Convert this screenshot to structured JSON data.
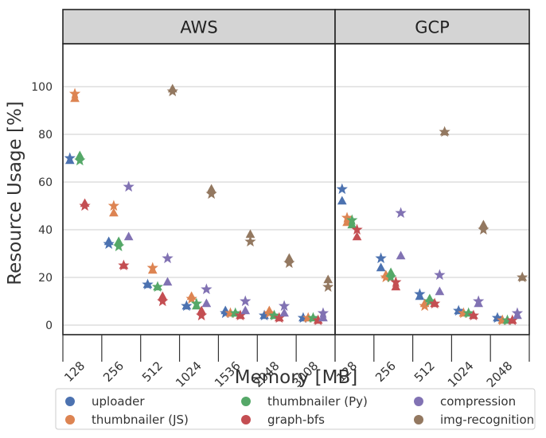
{
  "chart_data": {
    "type": "scatter",
    "ylabel": "Resource Usage [%]",
    "xlabel": "Memory [MB]",
    "ylim": [
      -4,
      118
    ],
    "yticks": [
      0,
      20,
      40,
      60,
      80,
      100
    ],
    "grid": true,
    "legend_position": "bottom",
    "marker_legend": {
      "triangle": "",
      "star": ""
    },
    "series": [
      {
        "name": "uploader",
        "color": "#4c72b0"
      },
      {
        "name": "thumbnailer (JS)",
        "color": "#dd8452"
      },
      {
        "name": "thumbnailer (Py)",
        "color": "#55a868"
      },
      {
        "name": "graph-bfs",
        "color": "#c44e52"
      },
      {
        "name": "compression",
        "color": "#8172b3"
      },
      {
        "name": "img-recognition",
        "color": "#937860"
      }
    ],
    "panels": [
      {
        "title": "AWS",
        "categories": [
          "128",
          "256",
          "512",
          "1024",
          "1536",
          "2048",
          "3008"
        ],
        "points": [
          {
            "series": "uploader",
            "x": "128",
            "tri": 69,
            "star": 70
          },
          {
            "series": "thumbnailer (JS)",
            "x": "128",
            "tri": 95,
            "star": 97
          },
          {
            "series": "thumbnailer (Py)",
            "x": "128",
            "tri": 71,
            "star": 69
          },
          {
            "series": "graph-bfs",
            "x": "128",
            "tri": 51,
            "star": 50
          },
          {
            "series": "uploader",
            "x": "256",
            "tri": 35,
            "star": 34
          },
          {
            "series": "thumbnailer (JS)",
            "x": "256",
            "tri": 47,
            "star": 50
          },
          {
            "series": "thumbnailer (Py)",
            "x": "256",
            "tri": 35,
            "star": 33
          },
          {
            "series": "graph-bfs",
            "x": "256",
            "tri": 25,
            "star": 25
          },
          {
            "series": "compression",
            "x": "256",
            "tri": 37,
            "star": 58
          },
          {
            "series": "uploader",
            "x": "512",
            "tri": 17,
            "star": 17
          },
          {
            "series": "thumbnailer (JS)",
            "x": "512",
            "tri": 23,
            "star": 24
          },
          {
            "series": "thumbnailer (Py)",
            "x": "512",
            "tri": 16,
            "star": 16
          },
          {
            "series": "graph-bfs",
            "x": "512",
            "tri": 12,
            "star": 10
          },
          {
            "series": "compression",
            "x": "512",
            "tri": 18,
            "star": 28
          },
          {
            "series": "img-recognition",
            "x": "512",
            "tri": 99,
            "star": 98
          },
          {
            "series": "uploader",
            "x": "1024",
            "tri": 8,
            "star": 8
          },
          {
            "series": "thumbnailer (JS)",
            "x": "1024",
            "tri": 12,
            "star": 11
          },
          {
            "series": "thumbnailer (Py)",
            "x": "1024",
            "tri": 8,
            "star": 9
          },
          {
            "series": "graph-bfs",
            "x": "1024",
            "tri": 6,
            "star": 4
          },
          {
            "series": "compression",
            "x": "1024",
            "tri": 9,
            "star": 15
          },
          {
            "series": "img-recognition",
            "x": "1024",
            "tri": 57,
            "star": 55
          },
          {
            "series": "uploader",
            "x": "1536",
            "tri": 6,
            "star": 5
          },
          {
            "series": "thumbnailer (JS)",
            "x": "1536",
            "tri": 5,
            "star": 5
          },
          {
            "series": "thumbnailer (Py)",
            "x": "1536",
            "tri": 5,
            "star": 5
          },
          {
            "series": "graph-bfs",
            "x": "1536",
            "tri": 4,
            "star": 4
          },
          {
            "series": "compression",
            "x": "1536",
            "tri": 6,
            "star": 10
          },
          {
            "series": "img-recognition",
            "x": "1536",
            "tri": 38,
            "star": 35
          },
          {
            "series": "uploader",
            "x": "2048",
            "tri": 4,
            "star": 4
          },
          {
            "series": "thumbnailer (JS)",
            "x": "2048",
            "tri": 6,
            "star": 5
          },
          {
            "series": "thumbnailer (Py)",
            "x": "2048",
            "tri": 4,
            "star": 4
          },
          {
            "series": "graph-bfs",
            "x": "2048",
            "tri": 3,
            "star": 3
          },
          {
            "series": "compression",
            "x": "2048",
            "tri": 5,
            "star": 8
          },
          {
            "series": "img-recognition",
            "x": "2048",
            "tri": 28,
            "star": 26
          },
          {
            "series": "uploader",
            "x": "3008",
            "tri": 3,
            "star": 3
          },
          {
            "series": "thumbnailer (JS)",
            "x": "3008",
            "tri": 3,
            "star": 3
          },
          {
            "series": "thumbnailer (Py)",
            "x": "3008",
            "tri": 3,
            "star": 3
          },
          {
            "series": "graph-bfs",
            "x": "3008",
            "tri": 2,
            "star": 2
          },
          {
            "series": "compression",
            "x": "3008",
            "tri": 3,
            "star": 5
          },
          {
            "series": "img-recognition",
            "x": "3008",
            "tri": 19,
            "star": 16
          }
        ]
      },
      {
        "title": "GCP",
        "categories": [
          "128",
          "256",
          "512",
          "1024",
          "2048"
        ],
        "points": [
          {
            "series": "uploader",
            "x": "128",
            "tri": 52,
            "star": 57
          },
          {
            "series": "thumbnailer (JS)",
            "x": "128",
            "tri": 43,
            "star": 45
          },
          {
            "series": "thumbnailer (Py)",
            "x": "128",
            "tri": 42,
            "star": 44
          },
          {
            "series": "graph-bfs",
            "x": "128",
            "tri": 37,
            "star": 40
          },
          {
            "series": "uploader",
            "x": "256",
            "tri": 24,
            "star": 28
          },
          {
            "series": "thumbnailer (JS)",
            "x": "256",
            "tri": 21,
            "star": 20
          },
          {
            "series": "thumbnailer (Py)",
            "x": "256",
            "tri": 22,
            "star": 20
          },
          {
            "series": "graph-bfs",
            "x": "256",
            "tri": 16,
            "star": 18
          },
          {
            "series": "compression",
            "x": "256",
            "tri": 29,
            "star": 47
          },
          {
            "series": "uploader",
            "x": "512",
            "tri": 12,
            "star": 13
          },
          {
            "series": "thumbnailer (JS)",
            "x": "512",
            "tri": 9,
            "star": 8
          },
          {
            "series": "thumbnailer (Py)",
            "x": "512",
            "tri": 11,
            "star": 10
          },
          {
            "series": "graph-bfs",
            "x": "512",
            "tri": 9,
            "star": 9
          },
          {
            "series": "compression",
            "x": "512",
            "tri": 14,
            "star": 21
          },
          {
            "series": "img-recognition",
            "x": "512",
            "tri": 81,
            "star": 81
          },
          {
            "series": "uploader",
            "x": "1024",
            "tri": 6,
            "star": 6
          },
          {
            "series": "thumbnailer (JS)",
            "x": "1024",
            "tri": 5,
            "star": 5
          },
          {
            "series": "thumbnailer (Py)",
            "x": "1024",
            "tri": 5,
            "star": 5
          },
          {
            "series": "graph-bfs",
            "x": "1024",
            "tri": 4,
            "star": 4
          },
          {
            "series": "compression",
            "x": "1024",
            "tri": 9,
            "star": 10
          },
          {
            "series": "img-recognition",
            "x": "1024",
            "tri": 42,
            "star": 40
          },
          {
            "series": "uploader",
            "x": "2048",
            "tri": 3,
            "star": 3
          },
          {
            "series": "thumbnailer (JS)",
            "x": "2048",
            "tri": 2,
            "star": 2
          },
          {
            "series": "thumbnailer (Py)",
            "x": "2048",
            "tri": 2,
            "star": 2
          },
          {
            "series": "graph-bfs",
            "x": "2048",
            "tri": 2,
            "star": 2
          },
          {
            "series": "compression",
            "x": "2048",
            "tri": 4,
            "star": 5
          },
          {
            "series": "img-recognition",
            "x": "2048",
            "tri": 20,
            "star": 20
          }
        ]
      }
    ]
  }
}
